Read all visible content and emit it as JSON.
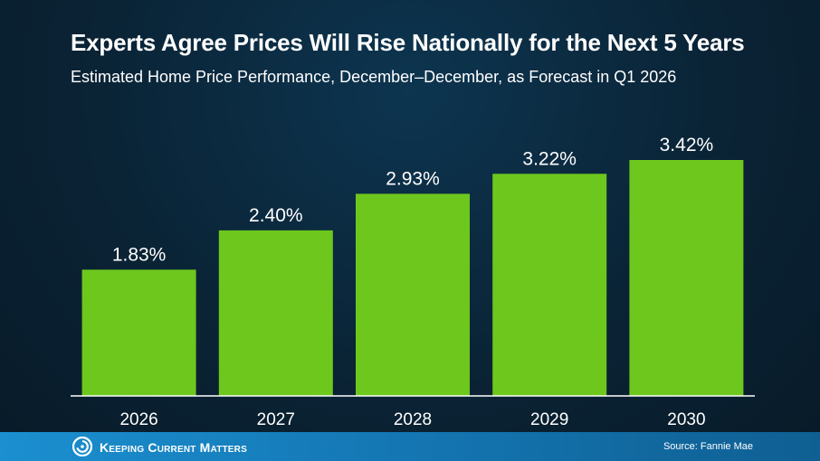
{
  "header": {
    "title": "Experts Agree Prices Will Rise Nationally for the Next 5 Years",
    "subtitle": "Estimated Home Price Performance, December–December, as Forecast in Q1 2026"
  },
  "chart_data": {
    "type": "bar",
    "categories": [
      "2026",
      "2027",
      "2028",
      "2029",
      "2030"
    ],
    "values": [
      1.83,
      2.4,
      2.93,
      3.22,
      3.42
    ],
    "data_labels": [
      "1.83%",
      "2.40%",
      "2.93%",
      "3.22%",
      "3.42%"
    ],
    "title": "Experts Agree Prices Will Rise Nationally for the Next 5 Years",
    "subtitle": "Estimated Home Price Performance, December–December, as Forecast in Q1 2026",
    "bar_color": "#6dc71d",
    "grid": false,
    "ylim": [
      0,
      3.42
    ]
  },
  "footer": {
    "brand": "Keeping Current Matters",
    "source": "Source: Fannie Mae",
    "logo_icon": "kcm-swirl-logo",
    "color": "#1b8fd0"
  }
}
